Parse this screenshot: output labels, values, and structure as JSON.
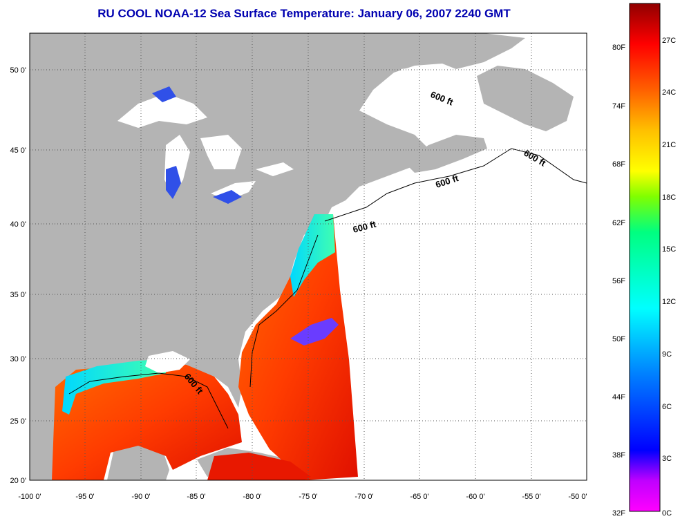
{
  "title": "RU COOL  NOAA-12  Sea Surface Temperature:  January 06, 2007 2240 GMT",
  "map": {
    "lon_ticks": [
      "-100 0'",
      "-95 0'",
      "-90 0'",
      "-85 0'",
      "-80 0'",
      "-75 0'",
      "-70 0'",
      "-65 0'",
      "-60 0'",
      "-55 0'",
      "-50 0'"
    ],
    "lat_ticks": [
      "50 0'",
      "45 0'",
      "40 0'",
      "35 0'",
      "30 0'",
      "25 0'",
      "20 0'"
    ],
    "contour_labels": [
      "600 ft",
      "600 ft",
      "600 ft",
      "600 ft",
      "600 ft"
    ]
  },
  "colorbar": {
    "fahrenheit_labels": [
      "80F",
      "74F",
      "68F",
      "62F",
      "56F",
      "50F",
      "44F",
      "38F",
      "32F"
    ],
    "celsius_labels": [
      "27C",
      "24C",
      "21C",
      "18C",
      "15C",
      "12C",
      "9C",
      "6C",
      "3C",
      "0C"
    ]
  },
  "colors": {
    "title": "#0000b0",
    "land": "#b4b4b4",
    "no_data": "#ffffff"
  }
}
